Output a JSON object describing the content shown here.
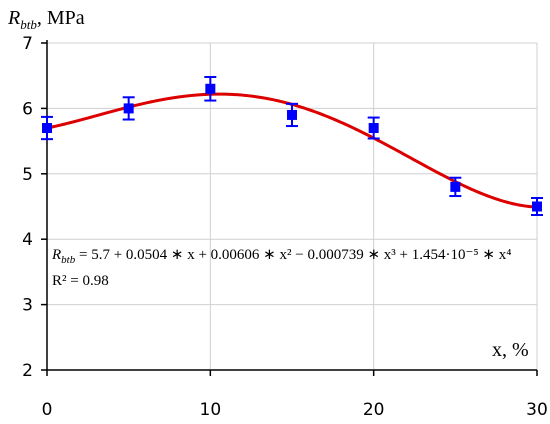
{
  "chart_data": {
    "type": "scatter",
    "ylabel_main": "R",
    "ylabel_sub": "btb",
    "ylabel_unit": ", MPa",
    "xlabel": "x, %",
    "xlim": [
      0,
      30
    ],
    "ylim": [
      2,
      7
    ],
    "xticks": [
      0,
      10,
      20,
      30
    ],
    "xtick_labels": [
      "0",
      "10",
      "20",
      "30"
    ],
    "yticks": [
      2,
      3,
      4,
      5,
      6,
      7
    ],
    "ytick_labels": [
      "2",
      "3",
      "4",
      "5",
      "6",
      "7"
    ],
    "grid": true,
    "points": [
      {
        "x": 0,
        "y": 5.7,
        "err": 0.17
      },
      {
        "x": 5,
        "y": 6.0,
        "err": 0.17
      },
      {
        "x": 10,
        "y": 6.3,
        "err": 0.18
      },
      {
        "x": 15,
        "y": 5.9,
        "err": 0.17
      },
      {
        "x": 20,
        "y": 5.7,
        "err": 0.16
      },
      {
        "x": 25,
        "y": 4.8,
        "err": 0.14
      },
      {
        "x": 30,
        "y": 4.5,
        "err": 0.13
      }
    ],
    "fit": {
      "coefficients": [
        5.7,
        0.0504,
        0.00606,
        -0.000739,
        1.454e-05
      ]
    },
    "colors": {
      "points": "#0000ff",
      "fit": "#dd0000",
      "grid": "#d0d0d0"
    },
    "equation": {
      "lhs_main": "R",
      "lhs_sub": "btb",
      "rhs": " = 5.7 + 0.0504 ∗ x + 0.00606 ∗ x² − 0.000739 ∗ x³ + 1.454·10⁻⁵ ∗ x⁴",
      "r2": "R² = 0.98"
    }
  }
}
